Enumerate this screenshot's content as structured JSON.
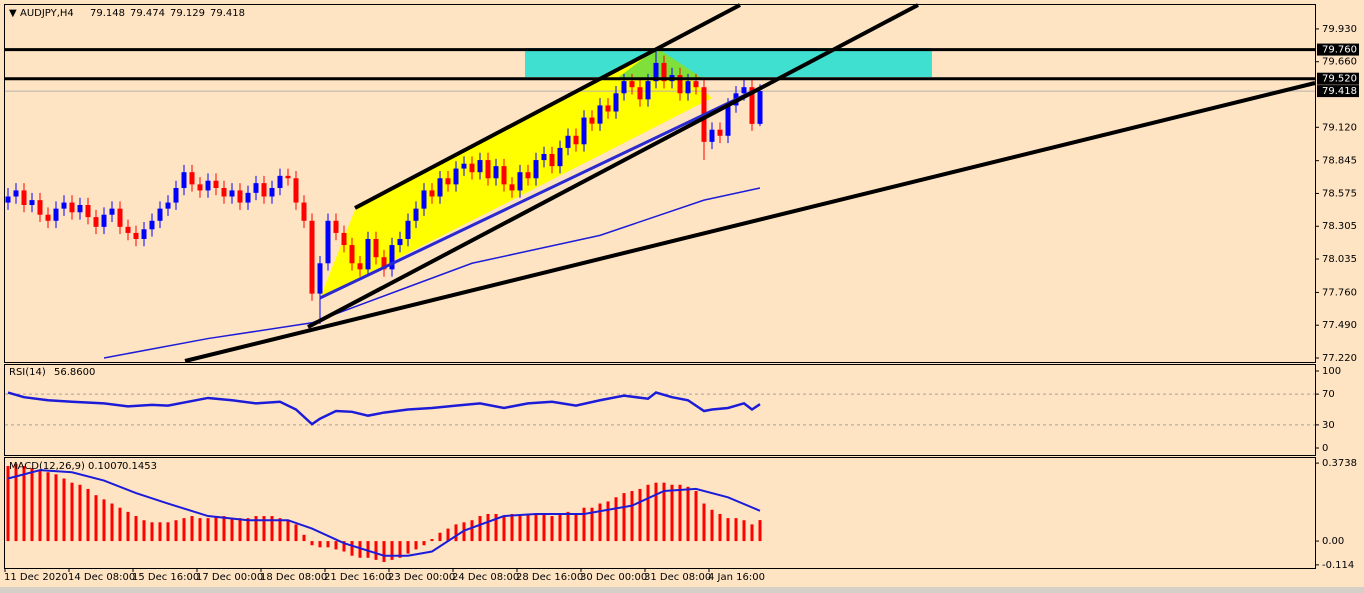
{
  "chart_data": [
    {
      "type": "candlestick",
      "title": "AUDJPY,H4",
      "categories": [
        "11 Dec 2020",
        null,
        null,
        null,
        null,
        null,
        null,
        null,
        "14 Dec 08:00",
        null,
        null,
        null,
        null,
        null,
        null,
        null,
        "15 Dec 16:00",
        null,
        null,
        null,
        null,
        null,
        null,
        null,
        "17 Dec 00:00",
        null,
        null,
        null,
        null,
        null,
        null,
        null,
        "18 Dec 08:00",
        null,
        null,
        null,
        null,
        null,
        null,
        null,
        "21 Dec 16:00",
        null,
        null,
        null,
        null,
        null,
        null,
        null,
        "23 Dec 00:00",
        null,
        null,
        null,
        null,
        null,
        null,
        null,
        "24 Dec 08:00",
        null,
        null,
        null,
        null,
        null,
        null,
        null,
        "28 Dec 16:00",
        null,
        null,
        null,
        null,
        null,
        null,
        null,
        "30 Dec 00:00",
        null,
        null,
        null,
        null,
        null,
        null,
        null,
        "31 Dec 08:00",
        null,
        null,
        null,
        null,
        null,
        null,
        null,
        "4 Jan 16:00",
        null,
        null,
        null,
        null,
        null,
        null
      ],
      "ohlc": [
        [
          78.5,
          78.62,
          78.44,
          78.55
        ],
        [
          78.55,
          78.66,
          78.49,
          78.6
        ],
        [
          78.6,
          78.66,
          78.42,
          78.48
        ],
        [
          78.48,
          78.58,
          78.42,
          78.52
        ],
        [
          78.52,
          78.58,
          78.34,
          78.4
        ],
        [
          78.4,
          78.46,
          78.29,
          78.35
        ],
        [
          78.35,
          78.51,
          78.29,
          78.45
        ],
        [
          78.45,
          78.56,
          78.39,
          78.5
        ],
        [
          78.5,
          78.56,
          78.36,
          78.42
        ],
        [
          78.42,
          78.54,
          78.36,
          78.48
        ],
        [
          78.48,
          78.54,
          78.32,
          78.38
        ],
        [
          78.38,
          78.44,
          78.24,
          78.3
        ],
        [
          78.3,
          78.46,
          78.24,
          78.4
        ],
        [
          78.4,
          78.51,
          78.34,
          78.45
        ],
        [
          78.45,
          78.51,
          78.24,
          78.3
        ],
        [
          78.3,
          78.36,
          78.19,
          78.25
        ],
        [
          78.25,
          78.31,
          78.14,
          78.2
        ],
        [
          78.2,
          78.34,
          78.14,
          78.28
        ],
        [
          78.28,
          78.41,
          78.22,
          78.35
        ],
        [
          78.35,
          78.51,
          78.29,
          78.45
        ],
        [
          78.45,
          78.56,
          78.39,
          78.5
        ],
        [
          78.5,
          78.68,
          78.44,
          78.62
        ],
        [
          78.62,
          78.81,
          78.56,
          78.75
        ],
        [
          78.75,
          78.81,
          78.59,
          78.65
        ],
        [
          78.65,
          78.71,
          78.54,
          78.6
        ],
        [
          78.6,
          78.74,
          78.54,
          78.68
        ],
        [
          78.68,
          78.74,
          78.56,
          78.62
        ],
        [
          78.62,
          78.68,
          78.49,
          78.55
        ],
        [
          78.55,
          78.66,
          78.49,
          78.6
        ],
        [
          78.6,
          78.66,
          78.44,
          78.5
        ],
        [
          78.5,
          78.64,
          78.44,
          78.58
        ],
        [
          78.58,
          78.72,
          78.52,
          78.66
        ],
        [
          78.66,
          78.72,
          78.49,
          78.55
        ],
        [
          78.55,
          78.68,
          78.49,
          78.62
        ],
        [
          78.62,
          78.78,
          78.56,
          78.72
        ],
        [
          78.72,
          78.78,
          78.64,
          78.7
        ],
        [
          78.7,
          78.76,
          78.44,
          78.5
        ],
        [
          78.5,
          78.56,
          78.29,
          78.35
        ],
        [
          78.35,
          78.41,
          77.69,
          77.75
        ],
        [
          77.75,
          78.06,
          77.5,
          78.0
        ],
        [
          78.0,
          78.41,
          77.94,
          78.35
        ],
        [
          78.35,
          78.41,
          78.19,
          78.25
        ],
        [
          78.25,
          78.31,
          78.09,
          78.15
        ],
        [
          78.15,
          78.21,
          77.94,
          78.0
        ],
        [
          78.0,
          78.06,
          77.89,
          77.95
        ],
        [
          77.95,
          78.26,
          77.89,
          78.2
        ],
        [
          78.2,
          78.26,
          77.99,
          78.05
        ],
        [
          78.05,
          78.11,
          77.89,
          77.95
        ],
        [
          77.95,
          78.21,
          77.89,
          78.15
        ],
        [
          78.15,
          78.26,
          78.09,
          78.2
        ],
        [
          78.2,
          78.41,
          78.14,
          78.35
        ],
        [
          78.35,
          78.51,
          78.29,
          78.45
        ],
        [
          78.45,
          78.66,
          78.39,
          78.6
        ],
        [
          78.6,
          78.66,
          78.49,
          78.55
        ],
        [
          78.55,
          78.76,
          78.49,
          78.7
        ],
        [
          78.7,
          78.76,
          78.59,
          78.65
        ],
        [
          78.65,
          78.84,
          78.59,
          78.78
        ],
        [
          78.78,
          78.88,
          78.72,
          78.82
        ],
        [
          78.82,
          78.88,
          78.69,
          78.75
        ],
        [
          78.75,
          78.91,
          78.69,
          78.85
        ],
        [
          78.85,
          78.91,
          78.64,
          78.7
        ],
        [
          78.7,
          78.86,
          78.64,
          78.8
        ],
        [
          78.8,
          78.86,
          78.59,
          78.65
        ],
        [
          78.65,
          78.71,
          78.54,
          78.6
        ],
        [
          78.6,
          78.81,
          78.54,
          78.75
        ],
        [
          78.75,
          78.81,
          78.64,
          78.7
        ],
        [
          78.7,
          78.91,
          78.64,
          78.85
        ],
        [
          78.85,
          78.96,
          78.79,
          78.9
        ],
        [
          78.9,
          78.96,
          78.74,
          78.8
        ],
        [
          78.8,
          79.01,
          78.74,
          78.95
        ],
        [
          78.95,
          79.11,
          78.89,
          79.05
        ],
        [
          79.05,
          79.11,
          78.92,
          78.98
        ],
        [
          78.98,
          79.26,
          78.92,
          79.2
        ],
        [
          79.2,
          79.26,
          79.09,
          79.15
        ],
        [
          79.15,
          79.36,
          79.09,
          79.3
        ],
        [
          79.3,
          79.36,
          79.19,
          79.25
        ],
        [
          79.25,
          79.46,
          79.19,
          79.4
        ],
        [
          79.4,
          79.56,
          79.34,
          79.5
        ],
        [
          79.5,
          79.56,
          79.39,
          79.45
        ],
        [
          79.45,
          79.51,
          79.29,
          79.35
        ],
        [
          79.35,
          79.56,
          79.29,
          79.5
        ],
        [
          79.5,
          79.76,
          79.44,
          79.65
        ],
        [
          79.65,
          79.71,
          79.44,
          79.5
        ],
        [
          79.5,
          79.61,
          79.44,
          79.55
        ],
        [
          79.55,
          79.61,
          79.34,
          79.4
        ],
        [
          79.4,
          79.56,
          79.34,
          79.5
        ],
        [
          79.5,
          79.56,
          79.39,
          79.45
        ],
        [
          79.45,
          79.51,
          78.85,
          79.0
        ],
        [
          79.0,
          79.16,
          78.94,
          79.1
        ],
        [
          79.1,
          79.16,
          78.99,
          79.05
        ],
        [
          79.05,
          79.36,
          78.99,
          79.3
        ],
        [
          79.3,
          79.46,
          79.24,
          79.4
        ],
        [
          79.4,
          79.51,
          79.34,
          79.45
        ],
        [
          79.45,
          79.51,
          79.09,
          79.148
        ],
        [
          79.148,
          79.474,
          79.129,
          79.418
        ]
      ],
      "up_color": "#0000ff",
      "down_color": "#ff0000",
      "ma": {
        "color": "#1c1cd8",
        "x": [
          12,
          25,
          38,
          49,
          58,
          74,
          87,
          94
        ],
        "values": [
          77.22,
          77.38,
          77.51,
          77.78,
          78.0,
          78.23,
          78.52,
          78.62
        ]
      },
      "ylim": [
        77.187,
        80.127
      ],
      "yticks": [
        {
          "value": 79.93,
          "label": "79.930"
        },
        {
          "value": 79.66,
          "label": "79.660"
        },
        {
          "value": 79.12,
          "label": "79.120"
        },
        78.845,
        78.575,
        78.305,
        78.035,
        {
          "value": 77.76,
          "label": "77.760"
        },
        {
          "value": 77.49,
          "label": "77.490"
        },
        {
          "value": 77.22,
          "label": "77.220"
        }
      ],
      "levels": [
        {
          "value": 79.76,
          "label": "79.760"
        },
        {
          "value": 79.52,
          "label": "79.520"
        }
      ],
      "last_price": {
        "value": 79.418,
        "label": "79.418"
      }
    },
    {
      "type": "line",
      "title": "RSI(14)",
      "color": "#1c1cd8",
      "x": [
        0,
        2,
        5,
        8,
        12,
        15,
        18,
        20,
        25,
        28,
        31,
        34,
        36,
        38,
        39,
        41,
        43,
        45,
        47,
        50,
        53,
        56,
        59,
        62,
        65,
        68,
        71,
        74,
        77,
        80,
        81,
        83,
        85,
        87,
        88,
        90,
        92,
        93,
        94
      ],
      "values": [
        72,
        66,
        62,
        60,
        58,
        54,
        56,
        55,
        65,
        62,
        58,
        60,
        50,
        31,
        38,
        48,
        47,
        42,
        46,
        50,
        52,
        55,
        58,
        52,
        58,
        60,
        55,
        62,
        68,
        64,
        72,
        66,
        62,
        48,
        50,
        52,
        58,
        50,
        56.86
      ],
      "last": {
        "value": 56.86,
        "label": "56.8600"
      },
      "ylim": [
        -9.1,
        109.1
      ],
      "yticks": [
        100,
        70,
        30,
        0
      ],
      "levels": [
        70,
        30
      ]
    },
    {
      "type": "macd",
      "title": "MACD(12,26,9)",
      "histogram": {
        "color": "#ff0000",
        "values": [
          0.36,
          0.37,
          0.36,
          0.35,
          0.34,
          0.33,
          0.32,
          0.3,
          0.28,
          0.27,
          0.25,
          0.22,
          0.2,
          0.18,
          0.16,
          0.14,
          0.12,
          0.1,
          0.09,
          0.09,
          0.09,
          0.1,
          0.11,
          0.12,
          0.11,
          0.11,
          0.12,
          0.12,
          0.11,
          0.11,
          0.11,
          0.12,
          0.12,
          0.12,
          0.11,
          0.1,
          0.08,
          0.03,
          -0.02,
          -0.03,
          -0.03,
          -0.04,
          -0.05,
          -0.07,
          -0.08,
          -0.08,
          -0.09,
          -0.1,
          -0.09,
          -0.08,
          -0.06,
          -0.04,
          -0.02,
          0.01,
          0.04,
          0.06,
          0.08,
          0.09,
          0.1,
          0.12,
          0.13,
          0.13,
          0.12,
          0.13,
          0.12,
          0.13,
          0.13,
          0.13,
          0.12,
          0.13,
          0.14,
          0.13,
          0.16,
          0.16,
          0.18,
          0.19,
          0.21,
          0.23,
          0.24,
          0.25,
          0.27,
          0.28,
          0.28,
          0.27,
          0.27,
          0.26,
          0.24,
          0.18,
          0.15,
          0.13,
          0.11,
          0.11,
          0.1,
          0.08,
          0.1007
        ]
      },
      "signal": {
        "color": "#1c1cd8",
        "x": [
          0,
          4,
          8,
          12,
          16,
          20,
          25,
          30,
          35,
          38,
          42,
          47,
          50,
          53,
          57,
          62,
          66,
          72,
          78,
          82,
          86,
          90,
          94
        ],
        "values": [
          0.3,
          0.34,
          0.33,
          0.29,
          0.23,
          0.18,
          0.12,
          0.1,
          0.1,
          0.06,
          -0.01,
          -0.07,
          -0.07,
          -0.05,
          0.05,
          0.12,
          0.13,
          0.13,
          0.17,
          0.24,
          0.25,
          0.21,
          0.1453
        ]
      },
      "last_values": [
        0.1007,
        0.1453
      ],
      "ylim": [
        -0.129,
        0.403
      ],
      "yticks": [
        0.3738,
        {
          "value": 0,
          "label": "0.00"
        },
        -0.114
      ]
    }
  ]
}
